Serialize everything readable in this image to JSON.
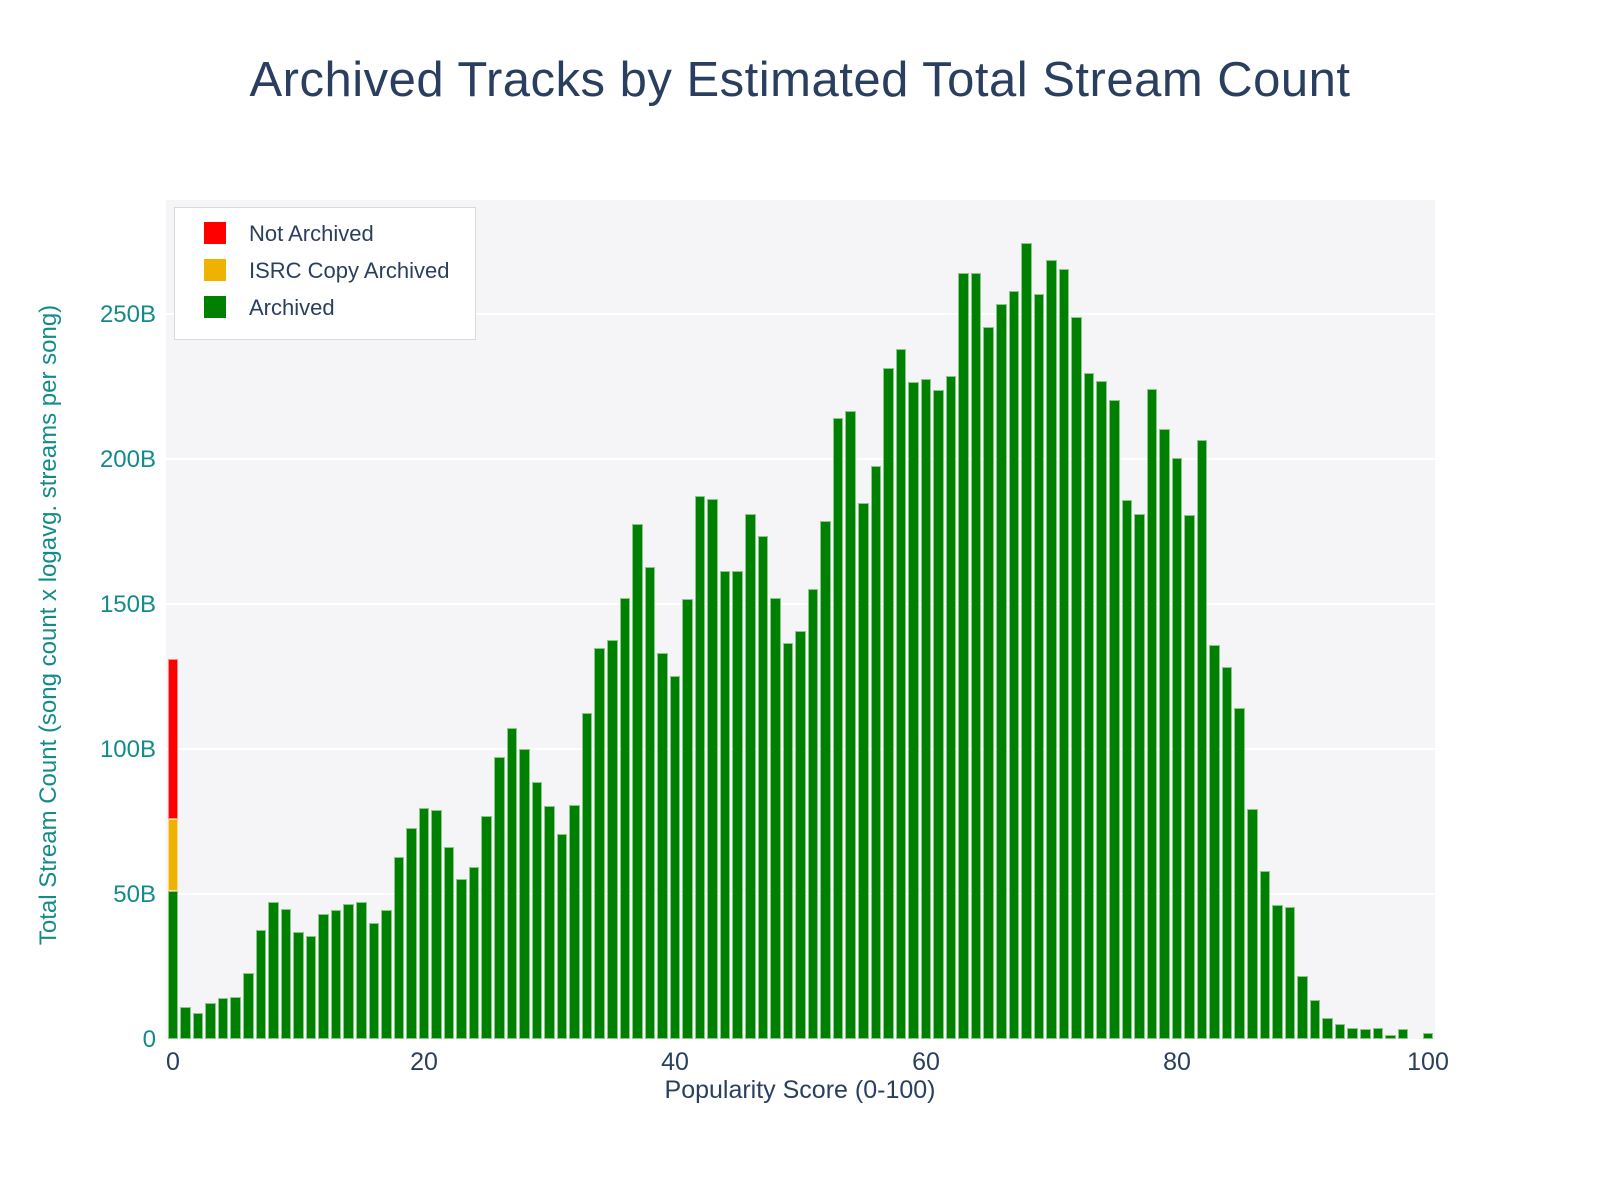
{
  "title": "Archived Tracks by Estimated Total Stream Count",
  "x_axis": {
    "title": "Popularity Score (0-100)",
    "tick_values": [
      0,
      20,
      40,
      60,
      80,
      100
    ]
  },
  "y_axis": {
    "title": "Total Stream Count (song count x logavg. streams per song)",
    "tick_values": [
      0,
      50,
      100,
      150,
      200,
      250
    ],
    "tick_labels": [
      "0",
      "50B",
      "100B",
      "150B",
      "200B",
      "250B"
    ]
  },
  "legend": {
    "items": [
      {
        "label": "Not Archived",
        "color": "#ff0000"
      },
      {
        "label": "ISRC Copy Archived",
        "color": "#f0b200"
      },
      {
        "label": "Archived",
        "color": "#008000"
      }
    ]
  },
  "colors": {
    "title_text": "#2a3f5f",
    "y_axis_text": "#148b8b",
    "x_axis_text": "#2a3f5f",
    "plot_background": "#f5f5f7",
    "gridline": "#ffffff"
  },
  "chart_data": {
    "type": "bar",
    "stacked": true,
    "title": "Archived Tracks by Estimated Total Stream Count",
    "xlabel": "Popularity Score (0-100)",
    "ylabel": "Total Stream Count (song count x logavg. streams per song)",
    "units": "billions of streams",
    "ylim": [
      0,
      289
    ],
    "xlim": [
      -0.6,
      100.6
    ],
    "grid": true,
    "legend_position": "top-left-inside",
    "x": [
      0,
      1,
      2,
      3,
      4,
      5,
      6,
      7,
      8,
      9,
      10,
      11,
      12,
      13,
      14,
      15,
      16,
      17,
      18,
      19,
      20,
      21,
      22,
      23,
      24,
      25,
      26,
      27,
      28,
      29,
      30,
      31,
      32,
      33,
      34,
      35,
      36,
      37,
      38,
      39,
      40,
      41,
      42,
      43,
      44,
      45,
      46,
      47,
      48,
      49,
      50,
      51,
      52,
      53,
      54,
      55,
      56,
      57,
      58,
      59,
      60,
      61,
      62,
      63,
      64,
      65,
      66,
      67,
      68,
      69,
      70,
      71,
      72,
      73,
      74,
      75,
      76,
      77,
      78,
      79,
      80,
      81,
      82,
      83,
      84,
      85,
      86,
      87,
      88,
      89,
      90,
      91,
      92,
      93,
      94,
      95,
      96,
      97,
      98,
      99,
      100
    ],
    "series": [
      {
        "name": "Archived",
        "color": "#008000",
        "values": [
          51,
          10.9,
          8.9,
          12.5,
          14,
          14.5,
          22.7,
          37.6,
          47.3,
          44.8,
          36.8,
          35.6,
          43,
          44.5,
          46.4,
          47.1,
          40.1,
          44.5,
          62.6,
          72.9,
          79.5,
          79,
          66.3,
          55.2,
          59.4,
          76.9,
          97.4,
          107.4,
          100,
          88.7,
          80.3,
          70.6,
          80.7,
          112.5,
          134.7,
          137.6,
          152,
          177.5,
          162.6,
          133,
          125.2,
          151.6,
          187.2,
          186.2,
          161.3,
          161.5,
          180.9,
          173.6,
          152,
          136.4,
          140.7,
          155.2,
          178.7,
          214.1,
          216.7,
          185,
          197.6,
          231.5,
          237.8,
          226.4,
          227.6,
          223.9,
          228.5,
          264.3,
          264,
          245.5,
          253.4,
          257.9,
          274.6,
          256.9,
          268.6,
          265.6,
          249,
          229.8,
          227,
          220.3,
          185.9,
          181,
          224,
          210.2,
          200.2,
          180.7,
          206.6,
          136,
          128.2,
          114,
          79.3,
          57.9,
          46.2,
          45.6,
          21.6,
          13.4,
          7.1,
          5.2,
          3.9,
          3.5,
          3.9,
          1.4,
          3.3,
          0,
          2.2
        ]
      },
      {
        "name": "ISRC Copy Archived",
        "color": "#f0b200",
        "values": [
          25,
          0,
          0,
          0,
          0,
          0,
          0,
          0,
          0,
          0,
          0,
          0,
          0,
          0,
          0,
          0,
          0,
          0,
          0,
          0,
          0,
          0,
          0,
          0,
          0,
          0,
          0,
          0,
          0,
          0,
          0,
          0,
          0,
          0,
          0,
          0,
          0,
          0,
          0,
          0,
          0,
          0,
          0,
          0,
          0,
          0,
          0,
          0,
          0,
          0,
          0,
          0,
          0,
          0,
          0,
          0,
          0,
          0,
          0,
          0,
          0,
          0,
          0,
          0,
          0,
          0,
          0,
          0,
          0,
          0,
          0,
          0,
          0,
          0,
          0,
          0,
          0,
          0,
          0,
          0,
          0,
          0,
          0,
          0,
          0,
          0,
          0,
          0,
          0,
          0,
          0,
          0,
          0,
          0,
          0,
          0,
          0,
          0,
          0,
          0,
          0
        ]
      },
      {
        "name": "Not Archived",
        "color": "#ff0000",
        "values": [
          55,
          0,
          0,
          0,
          0,
          0,
          0,
          0,
          0,
          0,
          0,
          0,
          0,
          0,
          0,
          0,
          0,
          0,
          0,
          0,
          0,
          0,
          0,
          0,
          0,
          0,
          0,
          0,
          0,
          0,
          0,
          0,
          0,
          0,
          0,
          0,
          0,
          0,
          0,
          0,
          0,
          0,
          0,
          0,
          0,
          0,
          0,
          0,
          0,
          0,
          0,
          0,
          0,
          0,
          0,
          0,
          0,
          0,
          0,
          0,
          0,
          0,
          0,
          0,
          0,
          0,
          0,
          0,
          0,
          0,
          0,
          0,
          0,
          0,
          0,
          0,
          0,
          0,
          0,
          0,
          0,
          0,
          0,
          0,
          0,
          0,
          0,
          0,
          0,
          0,
          0,
          0,
          0,
          0,
          0,
          0,
          0,
          0,
          0,
          0,
          0
        ]
      }
    ]
  }
}
